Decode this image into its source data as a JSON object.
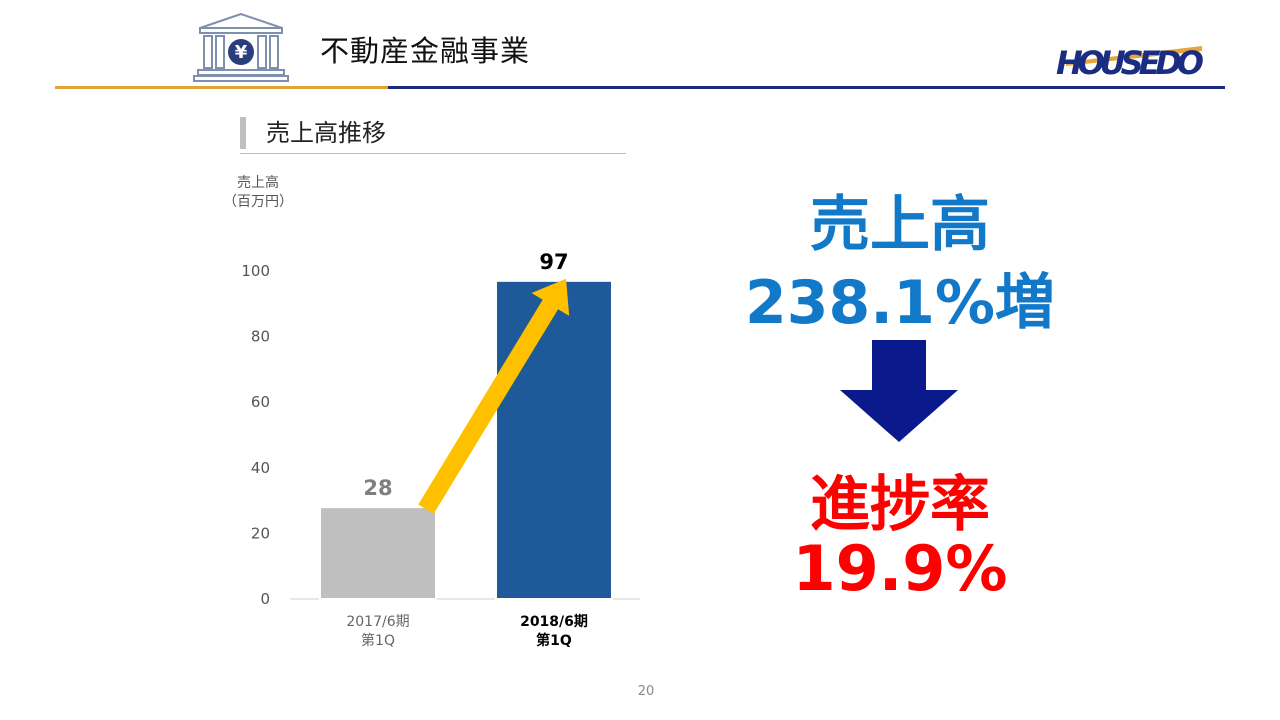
{
  "header": {
    "title": "不動産金融事業",
    "logo_text": "HOUSEDO",
    "icon": "yen-bank-icon",
    "colors": {
      "rule_left": "#e0a336",
      "rule_right": "#1b2d80"
    }
  },
  "section": {
    "title": "売上高推移"
  },
  "chart_data": {
    "type": "bar",
    "unit_label": [
      "売上高",
      "（百万円）"
    ],
    "categories": [
      [
        "2017/6期",
        "第1Q"
      ],
      [
        "2018/6期",
        "第1Q"
      ]
    ],
    "values": [
      28,
      97
    ],
    "data_labels": [
      "28",
      "97"
    ],
    "bar_colors": [
      "#bfbfbf",
      "#1e5a9a"
    ],
    "label_colors": [
      "#7f7f7f",
      "#000000"
    ],
    "ylim": [
      0,
      100
    ],
    "yticks": [
      0,
      20,
      40,
      60,
      80,
      100
    ],
    "grid": false,
    "annotation": "yellow-arrow-from-bar-1-to-bar-2"
  },
  "callout": {
    "label_1": "売上高",
    "value_1": "238.1%増",
    "label_2": "進捗率",
    "value_2": "19.9%",
    "arrow": "down-arrow-icon",
    "colors": {
      "primary": "#1279c9",
      "arrow": "#0a1a8c",
      "accent": "#ff0000"
    }
  },
  "footer": {
    "page_number": "20"
  }
}
